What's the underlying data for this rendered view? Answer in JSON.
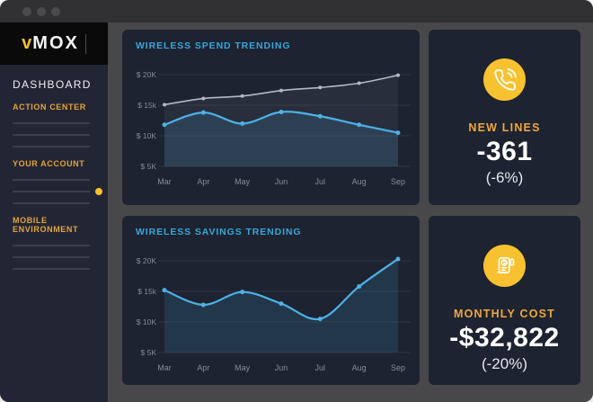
{
  "sidebar": {
    "logo": {
      "prefix": "v",
      "rest": "MOX"
    },
    "title": "DASHBOARD",
    "sections": [
      {
        "label": "ACTION CENTER",
        "lines": 3,
        "active_line": null
      },
      {
        "label": "YOUR ACCOUNT",
        "lines": 3,
        "active_line": 1
      },
      {
        "label": "MOBILE ENVIRONMENT",
        "lines": 3,
        "active_line": null
      }
    ]
  },
  "stats": [
    {
      "icon": "phone-call-icon",
      "label": "NEW LINES",
      "value": "-361",
      "delta": "(-6%)"
    },
    {
      "icon": "receipt-icon",
      "label": "MONTHLY COST",
      "value": "-$32,822",
      "delta": "(-20%)"
    }
  ],
  "colors": {
    "accent_yellow": "#f8c12f",
    "accent_orange": "#eda43e",
    "chart_title_cyan": "#38a6da",
    "blue_line": "#4db1e8",
    "gray_line": "#b4bac2",
    "card_bg": "#1d2330",
    "sidebar_bg": "#222634",
    "content_bg": "#48484b"
  },
  "chart_data": [
    {
      "type": "line",
      "title": "WIRELESS SPEND TRENDING",
      "x": [
        "Mar",
        "Apr",
        "May",
        "Jun",
        "Jul",
        "Aug",
        "Sep"
      ],
      "series": [
        {
          "name": "gray-line",
          "color": "#b4bac2",
          "fill": "rgba(195,205,215,0.07)",
          "values": [
            15.1,
            16.1,
            16.5,
            17.4,
            17.9,
            18.6,
            19.9
          ]
        },
        {
          "name": "blue-line",
          "color": "#4db1e8",
          "fill": "rgba(77,177,232,0.14)",
          "values": [
            11.8,
            13.8,
            12.0,
            13.9,
            13.2,
            11.8,
            10.5
          ]
        }
      ],
      "y_ticks": [
        {
          "v": 20,
          "label": "$ 20K"
        },
        {
          "v": 15,
          "label": "$ 15k"
        },
        {
          "v": 10,
          "label": "$ 10K"
        },
        {
          "v": 5,
          "label": "$ 5K"
        }
      ],
      "ylim": [
        5,
        21
      ],
      "grid": "horizontal",
      "legend": "none",
      "unit_scale": "thousands of dollars"
    },
    {
      "type": "line",
      "title": "WIRELESS SAVINGS TRENDING",
      "x": [
        "Mar",
        "Apr",
        "May",
        "Jun",
        "Jul",
        "Aug",
        "Sep"
      ],
      "series": [
        {
          "name": "blue-line",
          "color": "#4db1e8",
          "fill": "rgba(77,177,232,0.14)",
          "values": [
            15.2,
            12.8,
            14.9,
            13.0,
            10.5,
            15.8,
            20.3
          ]
        }
      ],
      "y_ticks": [
        {
          "v": 20,
          "label": "$ 20K"
        },
        {
          "v": 15,
          "label": "$ 15k"
        },
        {
          "v": 10,
          "label": "$ 10K"
        },
        {
          "v": 5,
          "label": "$ 5K"
        }
      ],
      "ylim": [
        5,
        21
      ],
      "grid": "horizontal",
      "legend": "none",
      "unit_scale": "thousands of dollars"
    }
  ]
}
